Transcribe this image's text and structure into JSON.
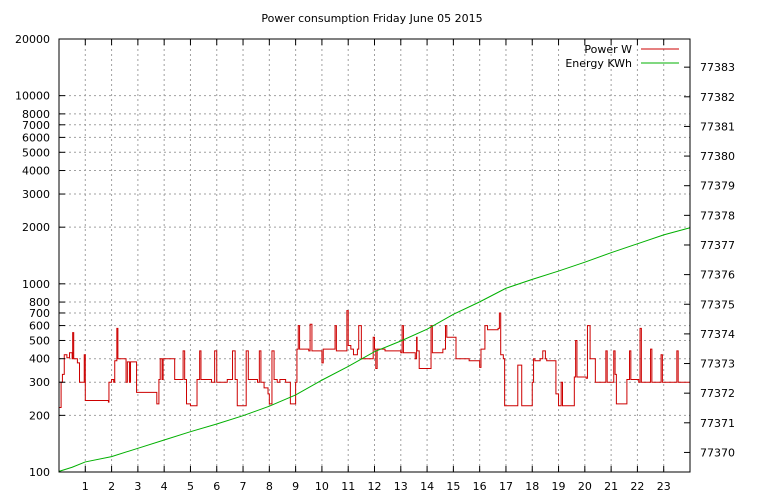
{
  "chart_data": {
    "type": "line",
    "title": "Power consumption Friday June 05 2015",
    "xlabel": "",
    "ylabel": "",
    "y2label": "",
    "grid": true,
    "legend_position": "top-right",
    "x_range": [
      0,
      24
    ],
    "x_ticks": [
      1,
      2,
      3,
      4,
      5,
      6,
      7,
      8,
      9,
      10,
      11,
      12,
      13,
      14,
      15,
      16,
      17,
      18,
      19,
      20,
      21,
      22,
      23
    ],
    "y_scale": "log",
    "y_range": [
      100,
      20000
    ],
    "y_ticks": [
      {
        "value": 100,
        "label": "100"
      },
      {
        "value": 200,
        "label": "200"
      },
      {
        "value": 300,
        "label": "300"
      },
      {
        "value": 400,
        "label": "400"
      },
      {
        "value": 500,
        "label": "500"
      },
      {
        "value": 600,
        "label": "600"
      },
      {
        "value": 700,
        "label": "700"
      },
      {
        "value": 800,
        "label": "800"
      },
      {
        "value": 1000,
        "label": "1000"
      },
      {
        "value": 2000,
        "label": "2000"
      },
      {
        "value": 3000,
        "label": "3000"
      },
      {
        "value": 4000,
        "label": "4000"
      },
      {
        "value": 5000,
        "label": "5000"
      },
      {
        "value": 6000,
        "label": "6000"
      },
      {
        "value": 7000,
        "label": "7000"
      },
      {
        "value": 8000,
        "label": "8000"
      },
      {
        "value": 10000,
        "label": "10000"
      },
      {
        "value": 20000,
        "label": "20000"
      }
    ],
    "y2_scale": "linear",
    "y2_range": [
      77369.34,
      77383.95
    ],
    "y2_ticks": [
      77370,
      77371,
      77372,
      77373,
      77374,
      77375,
      77376,
      77377,
      77378,
      77379,
      77380,
      77381,
      77382,
      77383
    ],
    "series": [
      {
        "name": "Power W",
        "axis": "y",
        "color": "#cc0000",
        "step": true,
        "points": [
          [
            0.0,
            220
          ],
          [
            0.08,
            300
          ],
          [
            0.13,
            330
          ],
          [
            0.2,
            420
          ],
          [
            0.3,
            405
          ],
          [
            0.4,
            430
          ],
          [
            0.5,
            400
          ],
          [
            0.52,
            550
          ],
          [
            0.56,
            400
          ],
          [
            0.7,
            380
          ],
          [
            0.78,
            300
          ],
          [
            0.92,
            300
          ],
          [
            0.96,
            420
          ],
          [
            1.0,
            240
          ],
          [
            1.5,
            240
          ],
          [
            1.88,
            235
          ],
          [
            1.9,
            300
          ],
          [
            2.0,
            310
          ],
          [
            2.08,
            300
          ],
          [
            2.12,
            390
          ],
          [
            2.2,
            580
          ],
          [
            2.24,
            400
          ],
          [
            2.4,
            400
          ],
          [
            2.55,
            300
          ],
          [
            2.6,
            385
          ],
          [
            2.68,
            300
          ],
          [
            2.72,
            385
          ],
          [
            2.88,
            385
          ],
          [
            2.95,
            265
          ],
          [
            3.3,
            265
          ],
          [
            3.6,
            265
          ],
          [
            3.72,
            230
          ],
          [
            3.8,
            310
          ],
          [
            3.85,
            400
          ],
          [
            3.92,
            310
          ],
          [
            3.96,
            400
          ],
          [
            4.1,
            400
          ],
          [
            4.4,
            310
          ],
          [
            4.6,
            310
          ],
          [
            4.72,
            440
          ],
          [
            4.78,
            310
          ],
          [
            4.85,
            230
          ],
          [
            5.0,
            225
          ],
          [
            5.18,
            225
          ],
          [
            5.25,
            310
          ],
          [
            5.32,
            310
          ],
          [
            5.35,
            440
          ],
          [
            5.4,
            310
          ],
          [
            5.6,
            310
          ],
          [
            5.8,
            300
          ],
          [
            5.88,
            300
          ],
          [
            5.92,
            440
          ],
          [
            6.0,
            300
          ],
          [
            6.2,
            300
          ],
          [
            6.4,
            310
          ],
          [
            6.55,
            310
          ],
          [
            6.6,
            440
          ],
          [
            6.7,
            310
          ],
          [
            6.78,
            225
          ],
          [
            7.05,
            225
          ],
          [
            7.12,
            440
          ],
          [
            7.2,
            310
          ],
          [
            7.5,
            310
          ],
          [
            7.55,
            300
          ],
          [
            7.62,
            440
          ],
          [
            7.68,
            300
          ],
          [
            7.8,
            280
          ],
          [
            7.95,
            260
          ],
          [
            8.0,
            230
          ],
          [
            8.1,
            440
          ],
          [
            8.18,
            310
          ],
          [
            8.3,
            300
          ],
          [
            8.4,
            310
          ],
          [
            8.55,
            310
          ],
          [
            8.62,
            300
          ],
          [
            8.8,
            230
          ],
          [
            8.95,
            230
          ],
          [
            9.0,
            300
          ],
          [
            9.05,
            450
          ],
          [
            9.1,
            600
          ],
          [
            9.15,
            450
          ],
          [
            9.5,
            440
          ],
          [
            9.55,
            610
          ],
          [
            9.62,
            440
          ],
          [
            9.95,
            440
          ],
          [
            10.0,
            380
          ],
          [
            10.05,
            450
          ],
          [
            10.4,
            450
          ],
          [
            10.5,
            600
          ],
          [
            10.55,
            440
          ],
          [
            10.8,
            440
          ],
          [
            10.95,
            720
          ],
          [
            11.0,
            470
          ],
          [
            11.1,
            450
          ],
          [
            11.2,
            420
          ],
          [
            11.35,
            450
          ],
          [
            11.4,
            600
          ],
          [
            11.5,
            400
          ],
          [
            11.7,
            400
          ],
          [
            11.95,
            520
          ],
          [
            12.0,
            450
          ],
          [
            12.05,
            355
          ],
          [
            12.1,
            450
          ],
          [
            12.4,
            440
          ],
          [
            12.7,
            440
          ],
          [
            13.0,
            430
          ],
          [
            13.05,
            600
          ],
          [
            13.1,
            430
          ],
          [
            13.3,
            430
          ],
          [
            13.55,
            400
          ],
          [
            13.6,
            520
          ],
          [
            13.62,
            440
          ],
          [
            13.7,
            355
          ],
          [
            14.0,
            355
          ],
          [
            14.15,
            600
          ],
          [
            14.2,
            430
          ],
          [
            14.4,
            430
          ],
          [
            14.6,
            450
          ],
          [
            14.7,
            600
          ],
          [
            14.75,
            520
          ],
          [
            14.85,
            520
          ],
          [
            15.05,
            520
          ],
          [
            15.1,
            400
          ],
          [
            15.3,
            400
          ],
          [
            15.6,
            390
          ],
          [
            15.95,
            390
          ],
          [
            16.0,
            360
          ],
          [
            16.05,
            450
          ],
          [
            16.15,
            450
          ],
          [
            16.2,
            600
          ],
          [
            16.3,
            570
          ],
          [
            16.6,
            570
          ],
          [
            16.7,
            580
          ],
          [
            16.75,
            700
          ],
          [
            16.8,
            420
          ],
          [
            16.9,
            400
          ],
          [
            16.95,
            225
          ],
          [
            17.3,
            225
          ],
          [
            17.45,
            370
          ],
          [
            17.6,
            225
          ],
          [
            17.8,
            225
          ],
          [
            17.95,
            225
          ],
          [
            18.0,
            300
          ],
          [
            18.05,
            400
          ],
          [
            18.1,
            390
          ],
          [
            18.3,
            400
          ],
          [
            18.4,
            440
          ],
          [
            18.5,
            400
          ],
          [
            18.55,
            390
          ],
          [
            18.8,
            390
          ],
          [
            18.9,
            260
          ],
          [
            19.0,
            225
          ],
          [
            19.1,
            300
          ],
          [
            19.15,
            225
          ],
          [
            19.5,
            225
          ],
          [
            19.6,
            320
          ],
          [
            19.65,
            500
          ],
          [
            19.7,
            320
          ],
          [
            20.0,
            320
          ],
          [
            20.05,
            315
          ],
          [
            20.1,
            600
          ],
          [
            20.2,
            400
          ],
          [
            20.4,
            300
          ],
          [
            20.7,
            300
          ],
          [
            20.8,
            440
          ],
          [
            20.85,
            300
          ],
          [
            21.0,
            300
          ],
          [
            21.1,
            440
          ],
          [
            21.15,
            330
          ],
          [
            21.2,
            230
          ],
          [
            21.5,
            230
          ],
          [
            21.6,
            310
          ],
          [
            21.7,
            440
          ],
          [
            21.75,
            310
          ],
          [
            22.0,
            310
          ],
          [
            22.05,
            300
          ],
          [
            22.1,
            580
          ],
          [
            22.15,
            300
          ],
          [
            22.4,
            300
          ],
          [
            22.5,
            450
          ],
          [
            22.55,
            300
          ],
          [
            22.8,
            300
          ],
          [
            22.9,
            420
          ],
          [
            22.95,
            300
          ],
          [
            23.3,
            300
          ],
          [
            23.4,
            300
          ],
          [
            23.5,
            440
          ],
          [
            23.55,
            300
          ],
          [
            23.7,
            300
          ],
          [
            23.75,
            300
          ],
          [
            24.0,
            300
          ]
        ]
      },
      {
        "name": "Energy KWh",
        "axis": "y2",
        "color": "#00b000",
        "step": false,
        "points": [
          [
            0,
            77369.36
          ],
          [
            0.5,
            77369.5
          ],
          [
            1,
            77369.68
          ],
          [
            2,
            77369.86
          ],
          [
            3,
            77370.14
          ],
          [
            4,
            77370.42
          ],
          [
            5,
            77370.7
          ],
          [
            6,
            77370.96
          ],
          [
            7,
            77371.24
          ],
          [
            8,
            77371.56
          ],
          [
            9,
            77371.94
          ],
          [
            10,
            77372.44
          ],
          [
            11,
            77372.9
          ],
          [
            12,
            77373.4
          ],
          [
            13,
            77373.76
          ],
          [
            14,
            77374.16
          ],
          [
            15,
            77374.66
          ],
          [
            16,
            77375.08
          ],
          [
            17,
            77375.54
          ],
          [
            18,
            77375.84
          ],
          [
            19,
            77376.12
          ],
          [
            20,
            77376.42
          ],
          [
            21,
            77376.74
          ],
          [
            22,
            77377.04
          ],
          [
            23,
            77377.34
          ],
          [
            24,
            77377.58
          ]
        ]
      }
    ]
  }
}
